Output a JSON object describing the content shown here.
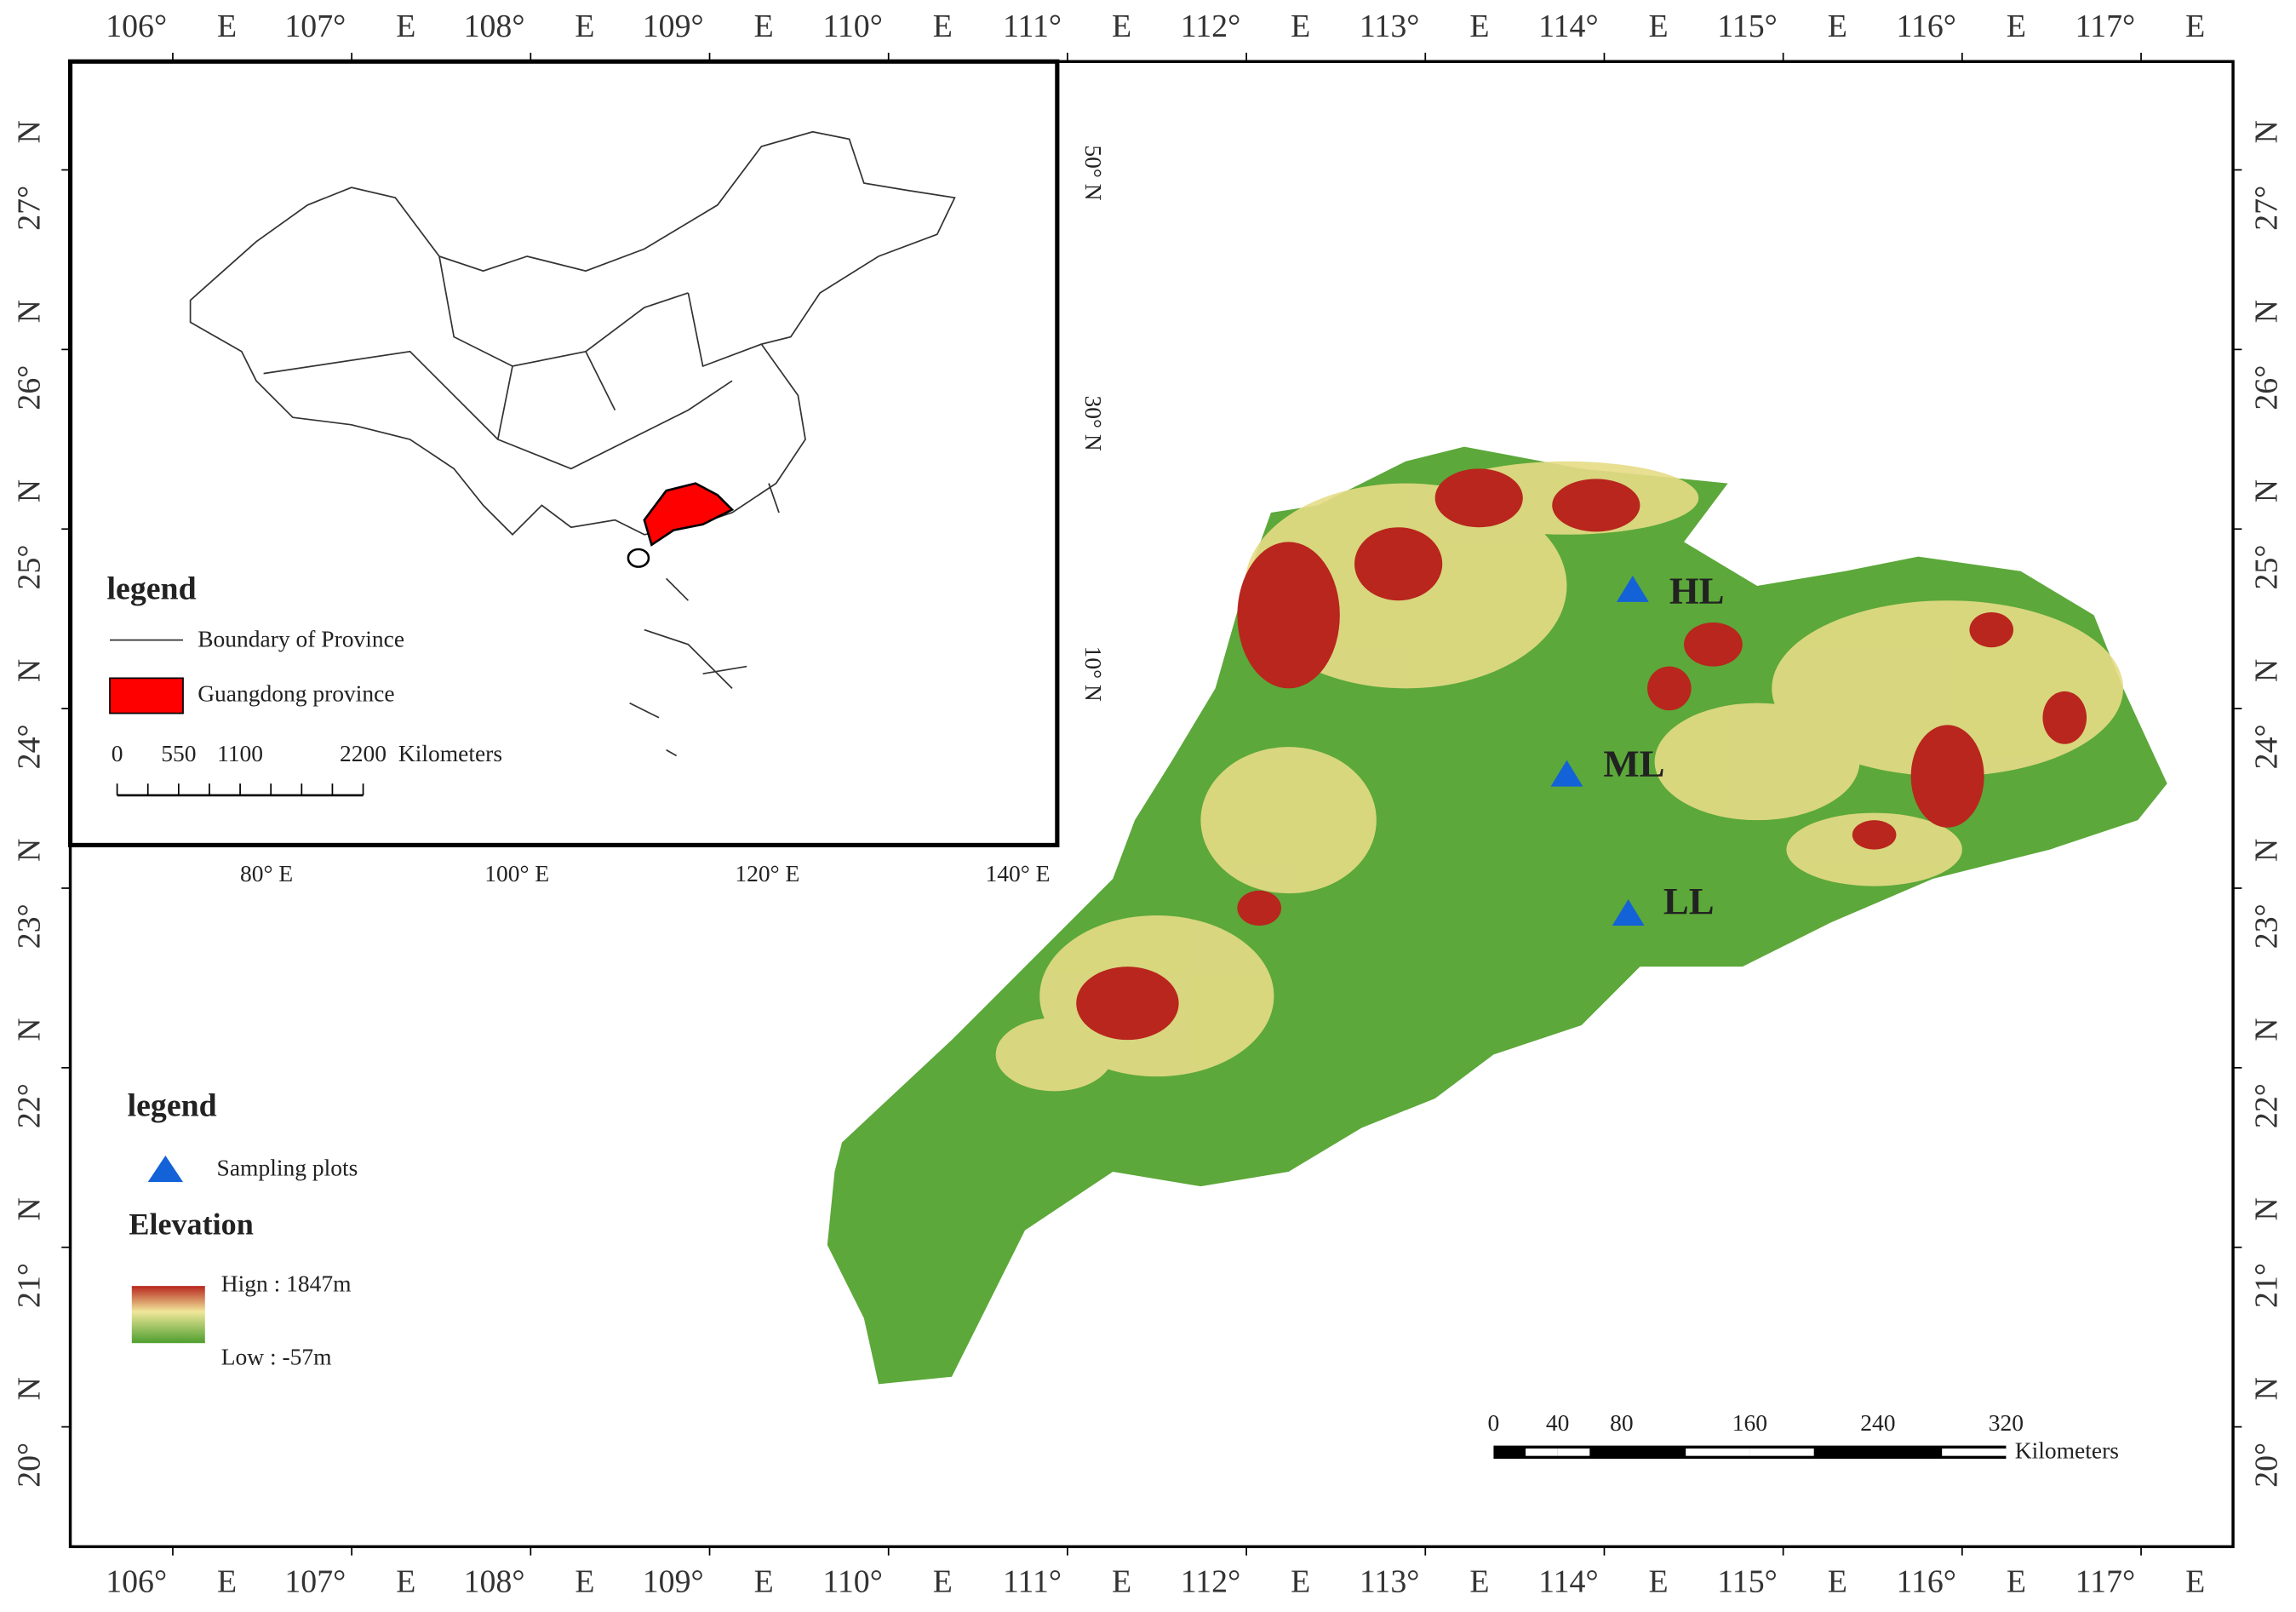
{
  "frame": {
    "lon_labels": [
      [
        "106°",
        "E"
      ],
      [
        "107°",
        "E"
      ],
      [
        "108°",
        "E"
      ],
      [
        "109°",
        "E"
      ],
      [
        "110°",
        "E"
      ],
      [
        "111°",
        "E"
      ],
      [
        "112°",
        "E"
      ],
      [
        "113°",
        "E"
      ],
      [
        "114°",
        "E"
      ],
      [
        "115°",
        "E"
      ],
      [
        "116°",
        "E"
      ],
      [
        "117°",
        "E"
      ]
    ],
    "lat_labels": [
      [
        "27°",
        "N"
      ],
      [
        "26°",
        "N"
      ],
      [
        "25°",
        "N"
      ],
      [
        "24°",
        "N"
      ],
      [
        "23°",
        "N"
      ],
      [
        "22°",
        "N"
      ],
      [
        "21°",
        "N"
      ],
      [
        "20°",
        "N"
      ]
    ]
  },
  "inset": {
    "lat_labels": [
      "50° N",
      "30° N",
      "10° N"
    ],
    "lon_labels": [
      "80° E",
      "100° E",
      "120° E",
      "140° E"
    ],
    "legend": {
      "title": "legend",
      "boundary": "Boundary of Province",
      "province": "Guangdong province"
    },
    "scale": {
      "ticks": [
        0,
        550,
        1100,
        2200
      ],
      "unit": "Kilometers"
    }
  },
  "legend": {
    "title": "legend",
    "sampling": "Sampling plots",
    "elevation": "Elevation",
    "high": "Hign : 1847m",
    "low": "Low : -57m"
  },
  "sites": [
    "HL",
    "ML",
    "LL"
  ],
  "scale": {
    "ticks": [
      0,
      40,
      80,
      160,
      240,
      320
    ],
    "unit": "Kilometers"
  }
}
